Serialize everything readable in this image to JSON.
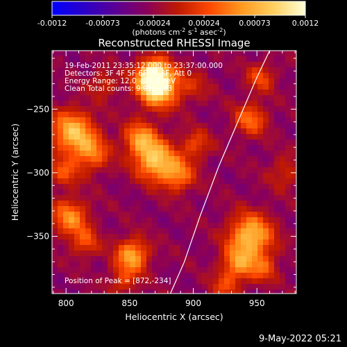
{
  "colorbar": {
    "ticks": [
      "-0.0012",
      "-0.00073",
      "-0.00024",
      "0.00024",
      "0.00073",
      "0.0012"
    ],
    "units_base": "(photons cm",
    "units_exp1": "-2",
    "units_mid": " s",
    "units_exp2": "-1",
    "units_mid2": " asec",
    "units_exp3": "-2",
    "units_end": ")",
    "stops": [
      "#0000ff",
      "#2a00c8",
      "#5a0096",
      "#8a005a",
      "#c01a00",
      "#ff4a00",
      "#ff9a20",
      "#ffd060",
      "#ffffd8"
    ]
  },
  "annotations": {
    "time_range": "19-Feb-2011 23:35:12.000 to 23:37:00.000",
    "detectors": "Detectors: 3F 4F 5F 6F 7F 8F, Att 0",
    "energy": "Energy Range: 12.0 - 25.0 keV",
    "clean": "Clean    Total counts: 9.91E+03",
    "peak": "Position of Peak = [872,-234]"
  },
  "timestamp": "9-May-2022 05:21",
  "chart_data": {
    "type": "heatmap",
    "title": "Reconstructed RHESSI Image",
    "xlabel": "Heliocentric X (arcsec)",
    "ylabel": "Heliocentric Y (arcsec)",
    "xlim": [
      789,
      981
    ],
    "ylim": [
      -395,
      -204
    ],
    "xticks": [
      800,
      850,
      900,
      950
    ],
    "yticks": [
      -250,
      -300,
      -350
    ],
    "limb_points": [
      [
        882,
        -395
      ],
      [
        893,
        -370
      ],
      [
        905,
        -335
      ],
      [
        920,
        -295
      ],
      [
        935,
        -260
      ],
      [
        950,
        -225
      ],
      [
        960,
        -204
      ]
    ],
    "sources": [
      {
        "x": 872,
        "y": -232,
        "amp": 1.0,
        "r": 11
      },
      {
        "x": 868,
        "y": -222,
        "amp": 0.7,
        "r": 8
      },
      {
        "x": 805,
        "y": -268,
        "amp": 0.7,
        "r": 12
      },
      {
        "x": 820,
        "y": -285,
        "amp": 0.45,
        "r": 10
      },
      {
        "x": 798,
        "y": -300,
        "amp": 0.35,
        "r": 8
      },
      {
        "x": 870,
        "y": -290,
        "amp": 0.75,
        "r": 11
      },
      {
        "x": 858,
        "y": -273,
        "amp": 0.55,
        "r": 9
      },
      {
        "x": 888,
        "y": -302,
        "amp": 0.5,
        "r": 9
      },
      {
        "x": 902,
        "y": -278,
        "amp": 0.35,
        "r": 8
      },
      {
        "x": 803,
        "y": -335,
        "amp": 0.55,
        "r": 10
      },
      {
        "x": 815,
        "y": -355,
        "amp": 0.35,
        "r": 8
      },
      {
        "x": 852,
        "y": -365,
        "amp": 0.65,
        "r": 9
      },
      {
        "x": 845,
        "y": -385,
        "amp": 0.3,
        "r": 8
      },
      {
        "x": 945,
        "y": -350,
        "amp": 0.75,
        "r": 12
      },
      {
        "x": 935,
        "y": -372,
        "amp": 0.5,
        "r": 9
      },
      {
        "x": 955,
        "y": -375,
        "amp": 0.35,
        "r": 8
      },
      {
        "x": 945,
        "y": -258,
        "amp": 0.45,
        "r": 9
      },
      {
        "x": 953,
        "y": -225,
        "amp": 0.35,
        "r": 8
      },
      {
        "x": 972,
        "y": -300,
        "amp": 0.25,
        "r": 9
      },
      {
        "x": 900,
        "y": -232,
        "amp": 0.2,
        "r": 9
      },
      {
        "x": 925,
        "y": -390,
        "amp": 0.3,
        "r": 8
      },
      {
        "x": 830,
        "y": -230,
        "amp": 0.25,
        "r": 8
      }
    ]
  }
}
